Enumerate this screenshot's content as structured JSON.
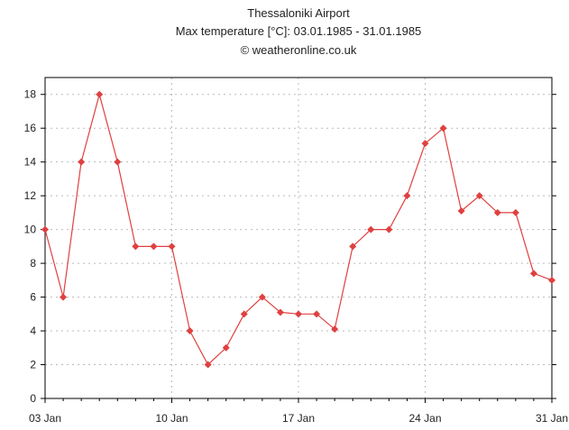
{
  "chart_data": {
    "type": "line",
    "title": "Thessaloniki Airport",
    "subtitle": "Max temperature [°C]: 03.01.1985 - 31.01.1985",
    "credit": "© weatheronline.co.uk",
    "xlabel": "",
    "ylabel": "",
    "x_day_range": [
      3,
      31
    ],
    "ylim": [
      0,
      19
    ],
    "y_ticks": [
      0,
      2,
      4,
      6,
      8,
      10,
      12,
      14,
      16,
      18
    ],
    "x_ticks": [
      {
        "day": 3,
        "label": "03 Jan"
      },
      {
        "day": 10,
        "label": "10 Jan"
      },
      {
        "day": 17,
        "label": "17 Jan"
      },
      {
        "day": 24,
        "label": "24 Jan"
      },
      {
        "day": 31,
        "label": "31 Jan"
      }
    ],
    "grid": true,
    "series": [
      {
        "name": "Max temperature",
        "color": "#e04040",
        "days": [
          3,
          4,
          5,
          6,
          7,
          8,
          9,
          10,
          11,
          12,
          13,
          14,
          15,
          16,
          17,
          18,
          19,
          20,
          21,
          22,
          23,
          24,
          25,
          26,
          27,
          28,
          29,
          30,
          31
        ],
        "values": [
          10,
          6,
          14,
          18,
          14,
          9,
          9,
          9,
          4,
          2,
          3,
          5,
          6,
          5.1,
          5,
          5,
          4.1,
          9,
          10,
          10,
          12,
          15.1,
          16,
          11.1,
          12,
          11,
          11,
          7.4,
          7
        ]
      }
    ]
  }
}
